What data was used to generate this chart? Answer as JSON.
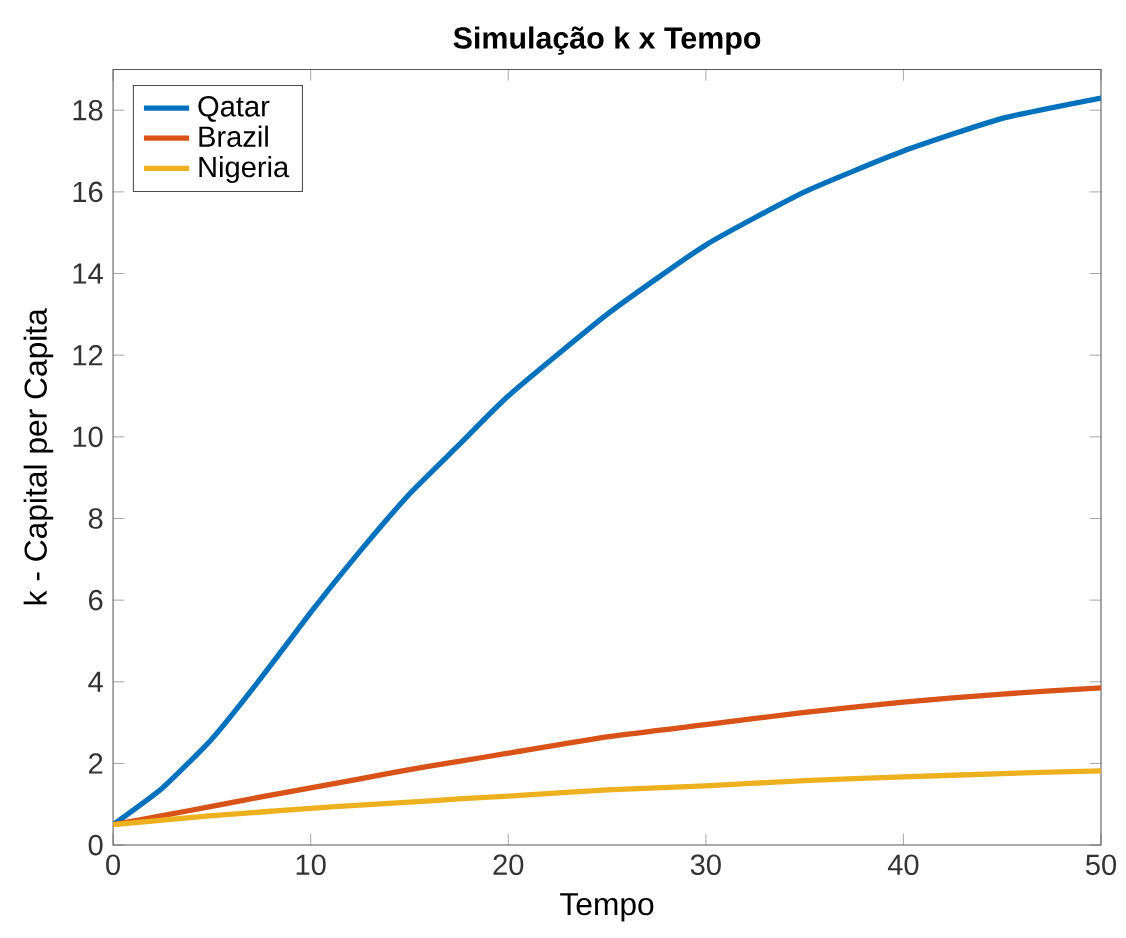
{
  "chart_data": {
    "type": "line",
    "title": "Simulação k x Tempo",
    "xlabel": "Tempo",
    "ylabel": "k - Capital per Capita",
    "x": [
      0,
      2.5,
      5,
      7.5,
      10,
      12.5,
      15,
      17.5,
      20,
      25,
      30,
      35,
      40,
      45,
      50
    ],
    "series": [
      {
        "name": "Qatar",
        "color": "#0072bd",
        "values": [
          0.5,
          1.4,
          2.6,
          4.1,
          5.7,
          7.2,
          8.6,
          9.8,
          11.0,
          13.0,
          14.7,
          16.0,
          17.0,
          17.8,
          18.3
        ]
      },
      {
        "name": "Brazil",
        "color": "#d95319",
        "values": [
          0.5,
          0.72,
          0.95,
          1.18,
          1.4,
          1.62,
          1.85,
          2.05,
          2.25,
          2.65,
          2.95,
          3.25,
          3.5,
          3.7,
          3.85
        ]
      },
      {
        "name": "Nigeria",
        "color": "#edb120",
        "values": [
          0.5,
          0.61,
          0.72,
          0.81,
          0.9,
          0.98,
          1.05,
          1.13,
          1.2,
          1.35,
          1.45,
          1.58,
          1.67,
          1.75,
          1.82
        ]
      }
    ],
    "xlim": [
      0,
      50
    ],
    "ylim": [
      0,
      19
    ],
    "xticks": [
      0,
      10,
      20,
      30,
      40,
      50
    ],
    "yticks": [
      0,
      2,
      4,
      6,
      8,
      10,
      12,
      14,
      16,
      18
    ],
    "grid": false,
    "legend": "top left",
    "marker": "none",
    "line_style": "solid"
  }
}
